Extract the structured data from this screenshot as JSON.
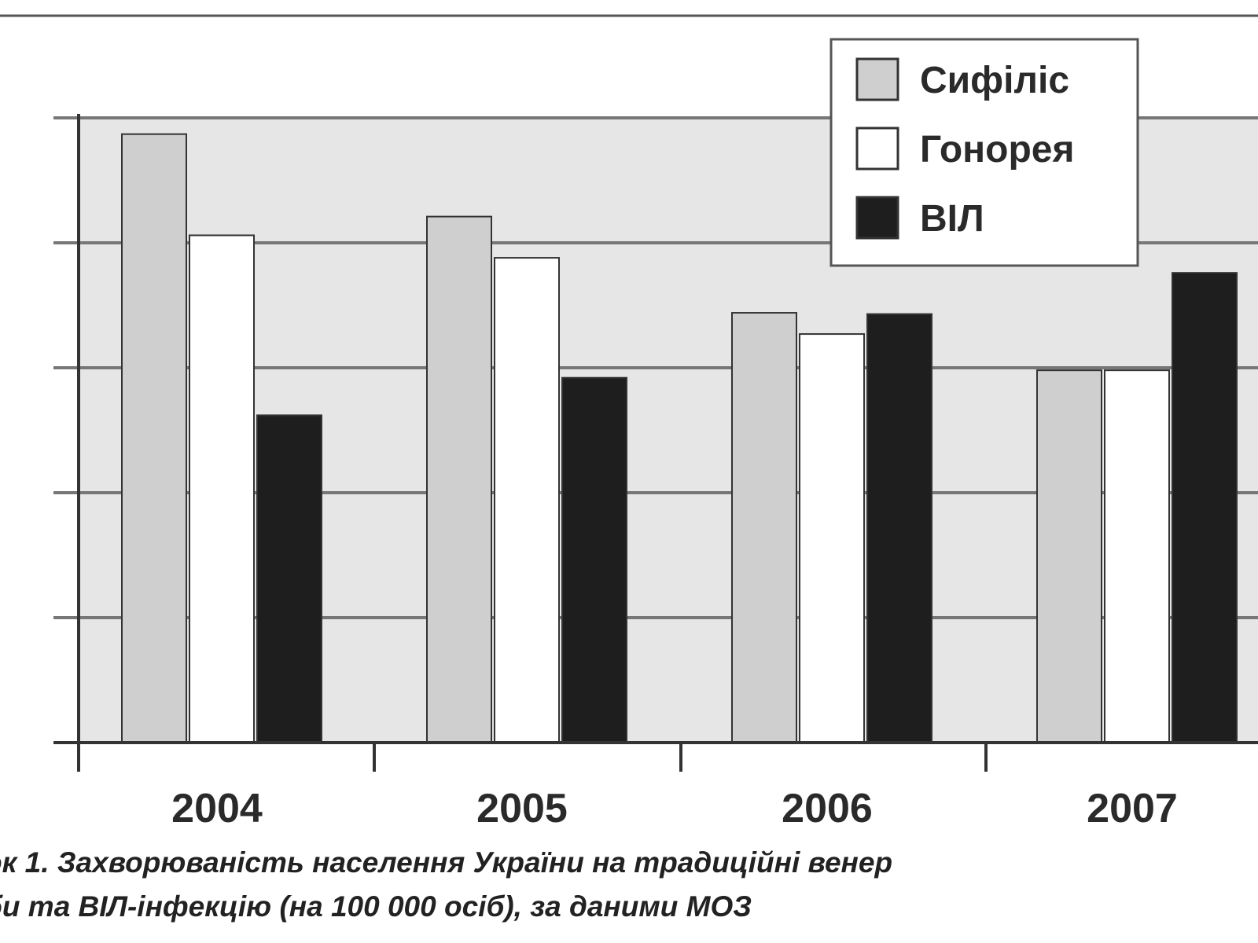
{
  "chart_data": {
    "type": "bar",
    "categories": [
      "2004",
      "2005",
      "2006",
      "2007"
    ],
    "series": [
      {
        "name": "Сифіліс",
        "values": [
          48.7,
          42.1,
          34.4,
          29.8
        ],
        "color": "#cfcfcf"
      },
      {
        "name": "Гонорея",
        "values": [
          40.6,
          38.8,
          32.7,
          29.8
        ],
        "color": "#ffffff"
      },
      {
        "name": "ВІЛ",
        "values": [
          26.2,
          29.2,
          34.3,
          37.6
        ],
        "color": "#1e1e1e"
      }
    ],
    "ylim": [
      0,
      50
    ],
    "grid": true,
    "legend": "top-right",
    "plot_background": "#e6e6e6"
  },
  "caption": {
    "line1": "ок 1. Захворюваність  населення України на традиційні венер",
    "line2": "би та ВІЛ-інфекцію (на 100 000 осіб), за даними МОЗ"
  }
}
